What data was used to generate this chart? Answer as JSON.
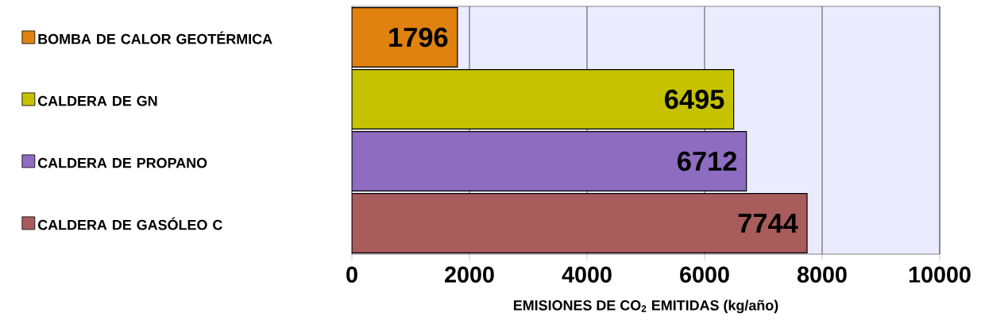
{
  "chart_data": {
    "type": "bar",
    "orientation": "horizontal",
    "categories": [
      "BOMBA DE CALOR GEOTÉRMICA",
      "CALDERA DE GN",
      "CALDERA DE PROPANO",
      "CALDERA DE GASÓLEO C"
    ],
    "values": [
      1796,
      6495,
      6712,
      7744
    ],
    "colors": [
      "#e0820f",
      "#c6c200",
      "#8e6cc0",
      "#a85c5c"
    ],
    "xlim": [
      0,
      10000
    ],
    "xticks": [
      0,
      2000,
      4000,
      6000,
      8000,
      10000
    ],
    "xlabel": "EMISIONES DE CO$_{2}$ EMITIDAS (kg/año)",
    "grid": "x",
    "data_labels": true
  }
}
